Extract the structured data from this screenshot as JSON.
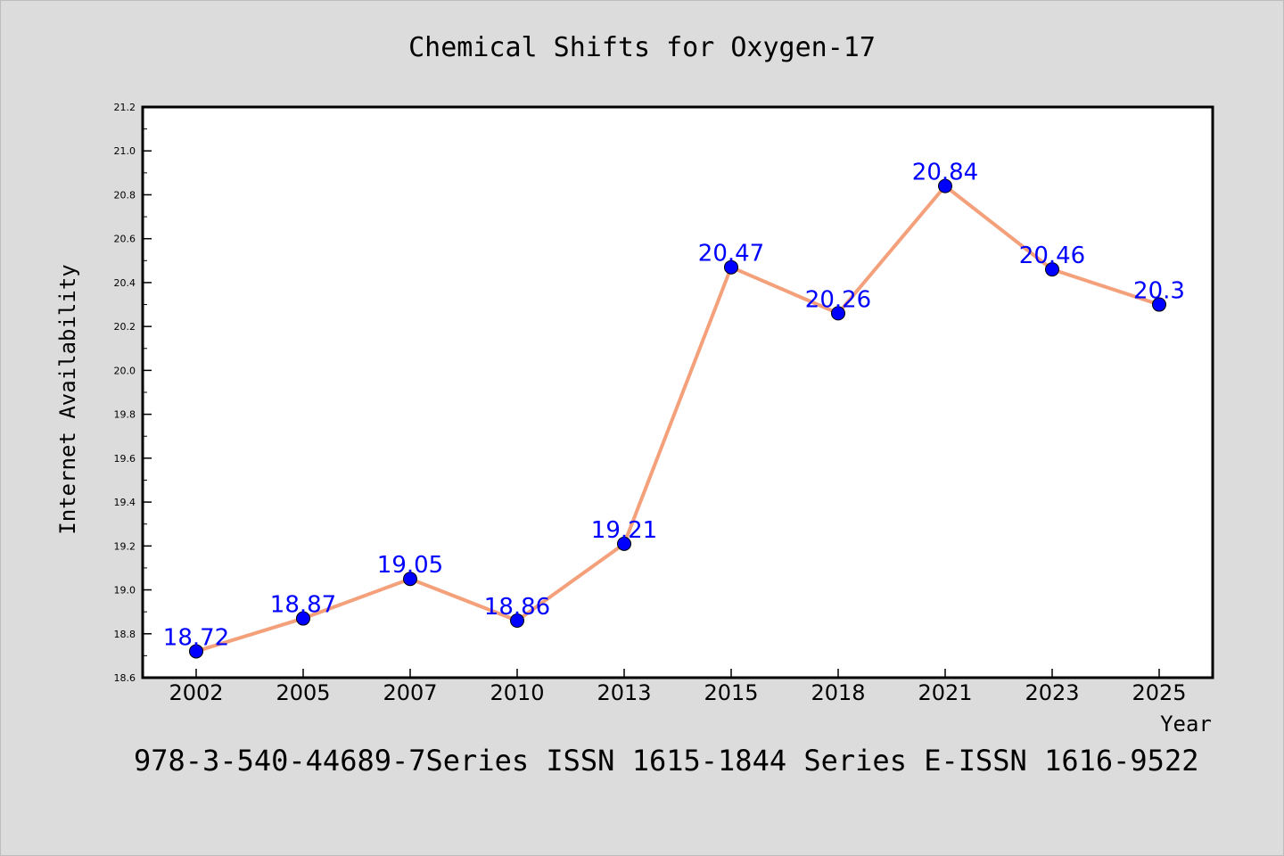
{
  "chart_data": {
    "type": "line",
    "title": "Chemical Shifts for Oxygen-17",
    "xlabel": "Year",
    "ylabel": "Internet Availability",
    "categories": [
      "2002",
      "2005",
      "2007",
      "2010",
      "2013",
      "2015",
      "2018",
      "2021",
      "2023",
      "2025"
    ],
    "series": [
      {
        "values": [
          18.72,
          18.87,
          19.05,
          18.86,
          19.21,
          20.47,
          20.26,
          20.84,
          20.46,
          20.3
        ],
        "labels": [
          "18.72",
          "18.87",
          "19.05",
          "18.86",
          "19.21",
          "20.47",
          "20.26",
          "20.84",
          "20.46",
          "20.3"
        ]
      }
    ],
    "ylim": [
      18.6,
      21.2
    ],
    "y_ticks": [
      "18.6",
      "18.8",
      "19.0",
      "19.2",
      "19.4",
      "19.6",
      "19.8",
      "20.0",
      "20.2",
      "20.4",
      "20.6",
      "20.8",
      "21.0",
      "21.2"
    ],
    "grid": false,
    "line_color": "#f4a07a",
    "marker_color": "#0000ff",
    "label_color": "#0000ff"
  },
  "footer": {
    "text": "978-3-540-44689-7Series ISSN 1615-1844 Series E-ISSN 1616-9522"
  }
}
